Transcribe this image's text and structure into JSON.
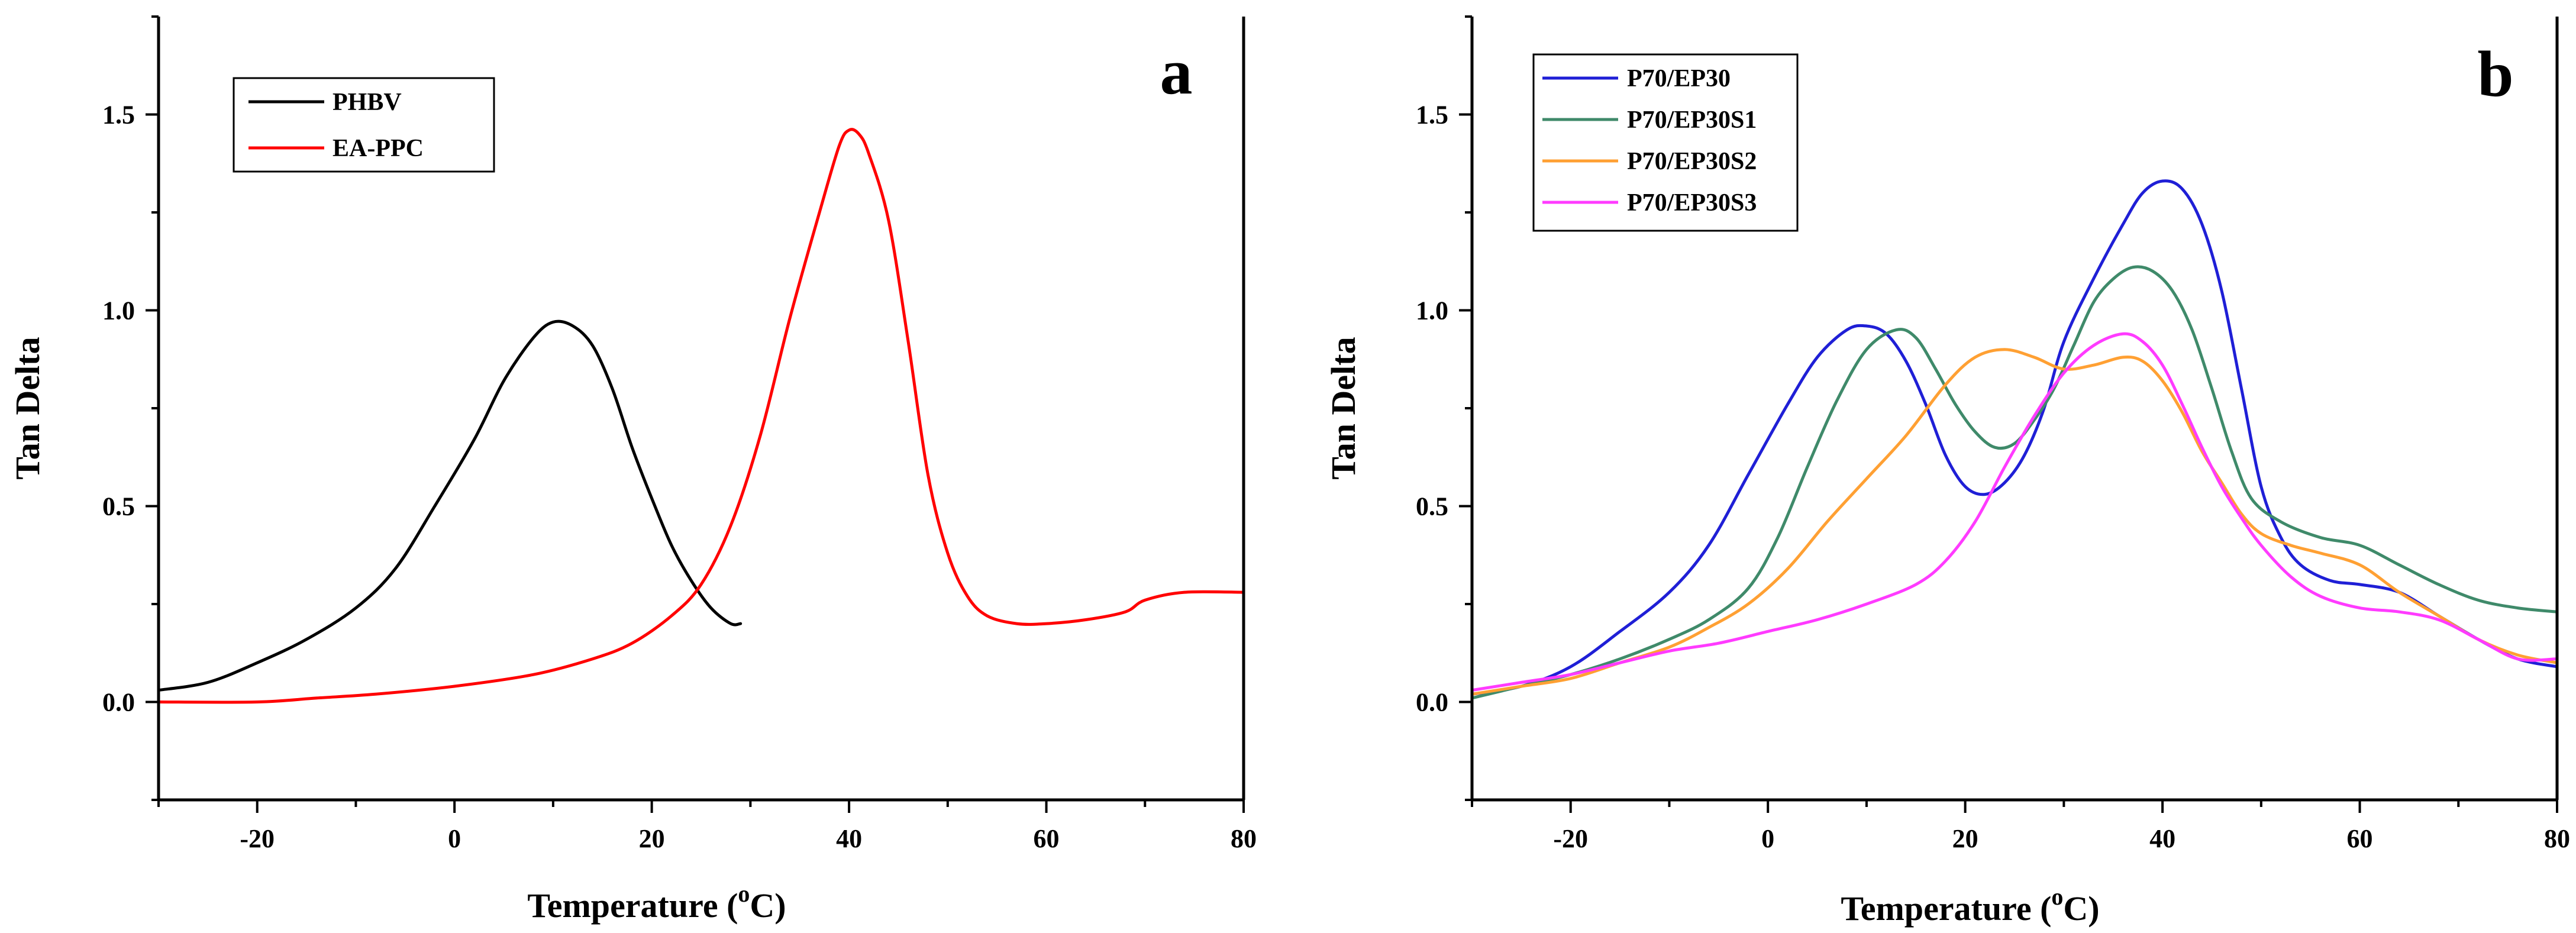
{
  "chart_data": [
    {
      "type": "line",
      "panel_label": "a",
      "xlabel": "Temperature (",
      "xlabel_sup": "o",
      "xlabel_suffix": "C)",
      "ylabel": "Tan Delta",
      "xlim": [
        -30,
        80
      ],
      "ylim": [
        -0.25,
        1.75
      ],
      "xticks": [
        -20,
        0,
        20,
        40,
        60,
        80
      ],
      "xtick_labels": [
        "-20",
        "0",
        "20",
        "40",
        "60",
        "80"
      ],
      "yticks": [
        0.0,
        0.5,
        1.0,
        1.5
      ],
      "ytick_labels": [
        "0.0",
        "0.5",
        "1.0",
        "1.5"
      ],
      "legend_position": "top-left",
      "series": [
        {
          "name": "PHBV",
          "color": "#000000",
          "points": [
            [
              -30,
              0.03
            ],
            [
              -25,
              0.05
            ],
            [
              -20,
              0.1
            ],
            [
              -15,
              0.16
            ],
            [
              -10,
              0.24
            ],
            [
              -6,
              0.34
            ],
            [
              -2,
              0.5
            ],
            [
              2,
              0.67
            ],
            [
              5,
              0.82
            ],
            [
              8,
              0.93
            ],
            [
              10,
              0.97
            ],
            [
              12,
              0.96
            ],
            [
              14,
              0.91
            ],
            [
              16,
              0.8
            ],
            [
              18,
              0.65
            ],
            [
              20,
              0.52
            ],
            [
              22,
              0.4
            ],
            [
              24,
              0.31
            ],
            [
              26,
              0.24
            ],
            [
              28,
              0.2
            ],
            [
              29,
              0.2
            ]
          ]
        },
        {
          "name": "EA-PPC",
          "color": "#ff0000",
          "points": [
            [
              -30,
              0.0
            ],
            [
              -20,
              0.0
            ],
            [
              -14,
              0.01
            ],
            [
              -8,
              0.02
            ],
            [
              0,
              0.04
            ],
            [
              8,
              0.07
            ],
            [
              14,
              0.11
            ],
            [
              18,
              0.15
            ],
            [
              22,
              0.22
            ],
            [
              25,
              0.3
            ],
            [
              28,
              0.45
            ],
            [
              31,
              0.68
            ],
            [
              34,
              0.98
            ],
            [
              37,
              1.25
            ],
            [
              39,
              1.42
            ],
            [
              40,
              1.46
            ],
            [
              41,
              1.45
            ],
            [
              42,
              1.4
            ],
            [
              44,
              1.23
            ],
            [
              46,
              0.92
            ],
            [
              48,
              0.58
            ],
            [
              50,
              0.38
            ],
            [
              52,
              0.27
            ],
            [
              54,
              0.22
            ],
            [
              57,
              0.2
            ],
            [
              60,
              0.2
            ],
            [
              64,
              0.21
            ],
            [
              68,
              0.23
            ],
            [
              70,
              0.26
            ],
            [
              74,
              0.28
            ],
            [
              80,
              0.28
            ]
          ]
        }
      ]
    },
    {
      "type": "line",
      "panel_label": "b",
      "xlabel": "Temperature (",
      "xlabel_sup": "o",
      "xlabel_suffix": "C)",
      "ylabel": "Tan Delta",
      "xlim": [
        -30,
        80
      ],
      "ylim": [
        -0.25,
        1.75
      ],
      "xticks": [
        -20,
        0,
        20,
        40,
        60,
        80
      ],
      "xtick_labels": [
        "-20",
        "0",
        "20",
        "40",
        "60",
        "80"
      ],
      "yticks": [
        0.0,
        0.5,
        1.0,
        1.5
      ],
      "ytick_labels": [
        "0.0",
        "0.5",
        "1.0",
        "1.5"
      ],
      "legend_position": "top-left",
      "series": [
        {
          "name": "P70/EP30",
          "color": "#1f1fd6",
          "points": [
            [
              -30,
              0.02
            ],
            [
              -25,
              0.04
            ],
            [
              -20,
              0.09
            ],
            [
              -15,
              0.18
            ],
            [
              -10,
              0.28
            ],
            [
              -6,
              0.4
            ],
            [
              -2,
              0.58
            ],
            [
              2,
              0.76
            ],
            [
              5,
              0.88
            ],
            [
              8,
              0.95
            ],
            [
              10,
              0.96
            ],
            [
              12,
              0.94
            ],
            [
              14,
              0.87
            ],
            [
              16,
              0.76
            ],
            [
              18,
              0.63
            ],
            [
              20,
              0.55
            ],
            [
              22,
              0.53
            ],
            [
              24,
              0.56
            ],
            [
              26,
              0.63
            ],
            [
              28,
              0.75
            ],
            [
              30,
              0.92
            ],
            [
              33,
              1.08
            ],
            [
              36,
              1.22
            ],
            [
              38,
              1.3
            ],
            [
              40,
              1.33
            ],
            [
              42,
              1.31
            ],
            [
              44,
              1.22
            ],
            [
              46,
              1.05
            ],
            [
              48,
              0.8
            ],
            [
              50,
              0.55
            ],
            [
              52,
              0.42
            ],
            [
              54,
              0.35
            ],
            [
              57,
              0.31
            ],
            [
              60,
              0.3
            ],
            [
              64,
              0.28
            ],
            [
              68,
              0.22
            ],
            [
              72,
              0.16
            ],
            [
              76,
              0.11
            ],
            [
              80,
              0.09
            ]
          ]
        },
        {
          "name": "P70/EP30S1",
          "color": "#3f8a6a",
          "points": [
            [
              -30,
              0.01
            ],
            [
              -25,
              0.04
            ],
            [
              -20,
              0.07
            ],
            [
              -15,
              0.11
            ],
            [
              -10,
              0.16
            ],
            [
              -6,
              0.21
            ],
            [
              -2,
              0.29
            ],
            [
              1,
              0.42
            ],
            [
              4,
              0.6
            ],
            [
              7,
              0.77
            ],
            [
              10,
              0.9
            ],
            [
              13,
              0.95
            ],
            [
              15,
              0.93
            ],
            [
              17,
              0.85
            ],
            [
              19,
              0.76
            ],
            [
              21,
              0.69
            ],
            [
              23,
              0.65
            ],
            [
              25,
              0.66
            ],
            [
              27,
              0.72
            ],
            [
              29,
              0.8
            ],
            [
              31,
              0.91
            ],
            [
              33,
              1.02
            ],
            [
              35,
              1.08
            ],
            [
              37,
              1.11
            ],
            [
              39,
              1.1
            ],
            [
              41,
              1.05
            ],
            [
              43,
              0.95
            ],
            [
              45,
              0.8
            ],
            [
              47,
              0.64
            ],
            [
              49,
              0.52
            ],
            [
              52,
              0.46
            ],
            [
              56,
              0.42
            ],
            [
              60,
              0.4
            ],
            [
              64,
              0.35
            ],
            [
              68,
              0.3
            ],
            [
              72,
              0.26
            ],
            [
              76,
              0.24
            ],
            [
              80,
              0.23
            ]
          ]
        },
        {
          "name": "P70/EP30S2",
          "color": "#ffa033",
          "points": [
            [
              -30,
              0.02
            ],
            [
              -25,
              0.04
            ],
            [
              -20,
              0.06
            ],
            [
              -15,
              0.1
            ],
            [
              -10,
              0.14
            ],
            [
              -6,
              0.19
            ],
            [
              -2,
              0.25
            ],
            [
              2,
              0.34
            ],
            [
              6,
              0.46
            ],
            [
              10,
              0.57
            ],
            [
              14,
              0.68
            ],
            [
              18,
              0.81
            ],
            [
              21,
              0.88
            ],
            [
              24,
              0.9
            ],
            [
              27,
              0.88
            ],
            [
              30,
              0.85
            ],
            [
              33,
              0.86
            ],
            [
              36,
              0.88
            ],
            [
              38,
              0.87
            ],
            [
              40,
              0.82
            ],
            [
              42,
              0.74
            ],
            [
              44,
              0.64
            ],
            [
              46,
              0.56
            ],
            [
              48,
              0.48
            ],
            [
              50,
              0.43
            ],
            [
              53,
              0.4
            ],
            [
              56,
              0.38
            ],
            [
              60,
              0.35
            ],
            [
              64,
              0.28
            ],
            [
              68,
              0.22
            ],
            [
              72,
              0.16
            ],
            [
              76,
              0.12
            ],
            [
              80,
              0.1
            ]
          ]
        },
        {
          "name": "P70/EP30S3",
          "color": "#ff3bff",
          "points": [
            [
              -30,
              0.03
            ],
            [
              -25,
              0.05
            ],
            [
              -20,
              0.07
            ],
            [
              -15,
              0.1
            ],
            [
              -10,
              0.13
            ],
            [
              -5,
              0.15
            ],
            [
              0,
              0.18
            ],
            [
              5,
              0.21
            ],
            [
              10,
              0.25
            ],
            [
              15,
              0.3
            ],
            [
              18,
              0.36
            ],
            [
              21,
              0.46
            ],
            [
              24,
              0.6
            ],
            [
              27,
              0.73
            ],
            [
              30,
              0.84
            ],
            [
              33,
              0.91
            ],
            [
              36,
              0.94
            ],
            [
              38,
              0.92
            ],
            [
              40,
              0.86
            ],
            [
              42,
              0.76
            ],
            [
              44,
              0.65
            ],
            [
              46,
              0.55
            ],
            [
              48,
              0.47
            ],
            [
              50,
              0.4
            ],
            [
              53,
              0.32
            ],
            [
              56,
              0.27
            ],
            [
              60,
              0.24
            ],
            [
              64,
              0.23
            ],
            [
              68,
              0.21
            ],
            [
              72,
              0.16
            ],
            [
              76,
              0.11
            ],
            [
              80,
              0.11
            ]
          ]
        }
      ]
    }
  ]
}
